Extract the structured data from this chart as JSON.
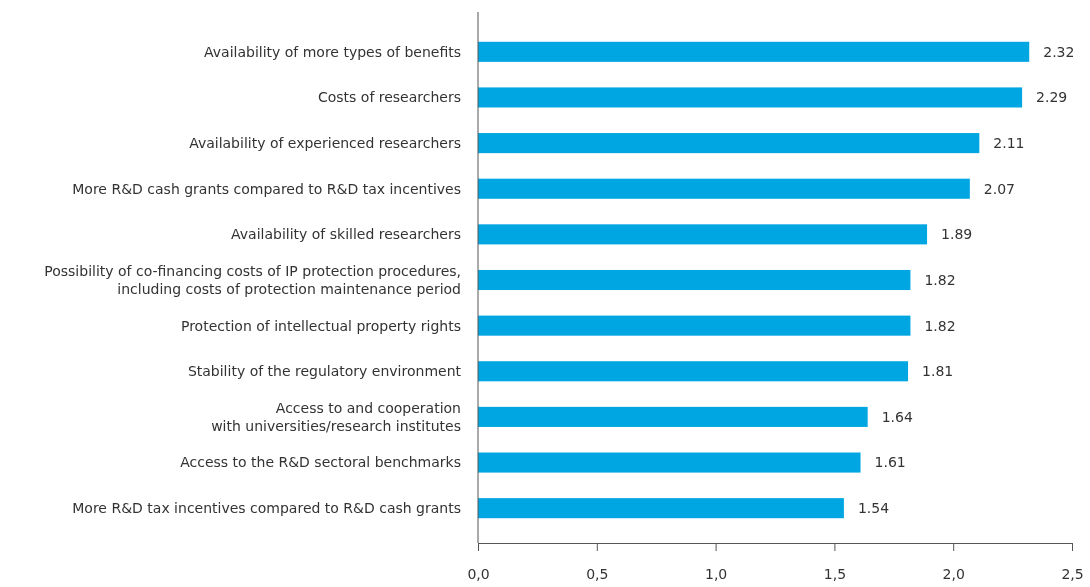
{
  "chart_data": {
    "type": "bar",
    "orientation": "horizontal",
    "categories": [
      "Availability of more types of benefits",
      "Costs of researchers",
      "Availability of experienced researchers",
      "More R&D cash grants compared to R&D tax incentives",
      "Availability of skilled researchers",
      "Possibility of co-financing costs of IP protection procedures,\nincluding costs of protection maintenance period",
      "Protection of intellectual property rights",
      "Stability of the regulatory environment",
      "Access to and cooperation\nwith universities/research institutes",
      "Access to the R&D sectoral benchmarks",
      "More R&D tax incentives compared to R&D cash grants"
    ],
    "values": [
      2.32,
      2.29,
      2.11,
      2.07,
      1.89,
      1.82,
      1.82,
      1.81,
      1.64,
      1.61,
      1.54
    ],
    "color": "#00a6e2",
    "xlim": [
      0,
      2.5
    ],
    "xticks": [
      {
        "value": 0,
        "label": "0,0"
      },
      {
        "value": 0.5,
        "label": "0,5"
      },
      {
        "value": 1,
        "label": "1,0"
      },
      {
        "value": 1.5,
        "label": "1,5"
      },
      {
        "value": 2,
        "label": "2,0"
      },
      {
        "value": 2.5,
        "label": "2,5"
      }
    ],
    "data_labels": true,
    "grid": false
  }
}
